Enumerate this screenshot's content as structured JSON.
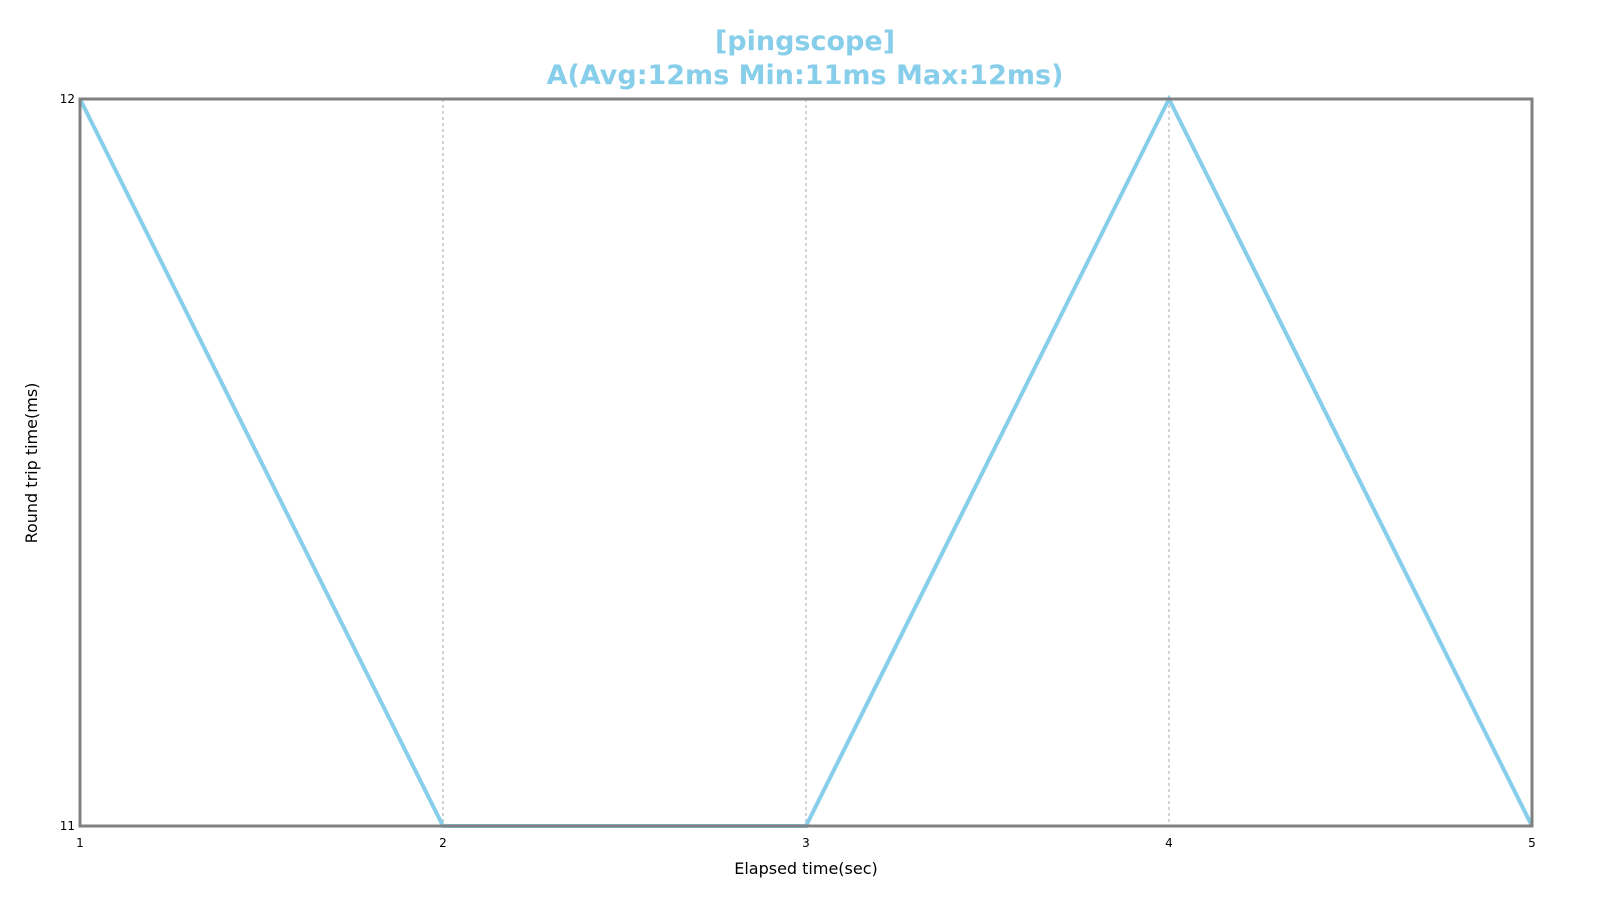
{
  "chart_data": {
    "type": "line",
    "title": "[pingscope]",
    "subtitle": "A(Avg:12ms Min:11ms Max:12ms)",
    "xlabel": "Elapsed time(sec)",
    "ylabel": "Round trip time(ms)",
    "xlim": [
      1,
      5
    ],
    "ylim": [
      11,
      12
    ],
    "x_ticks": [
      1,
      2,
      3,
      4,
      5
    ],
    "y_ticks": [
      11,
      12
    ],
    "grid": "vertical dotted",
    "legend": "none",
    "series": [
      {
        "x": [
          1,
          2,
          3,
          4,
          5
        ],
        "y": [
          12,
          11,
          11,
          12,
          11
        ],
        "color": "#87CEEB"
      }
    ]
  },
  "colors": {
    "title": "#87CEEB",
    "axis_frame": "#808080",
    "grid": "#aaaaaa"
  }
}
